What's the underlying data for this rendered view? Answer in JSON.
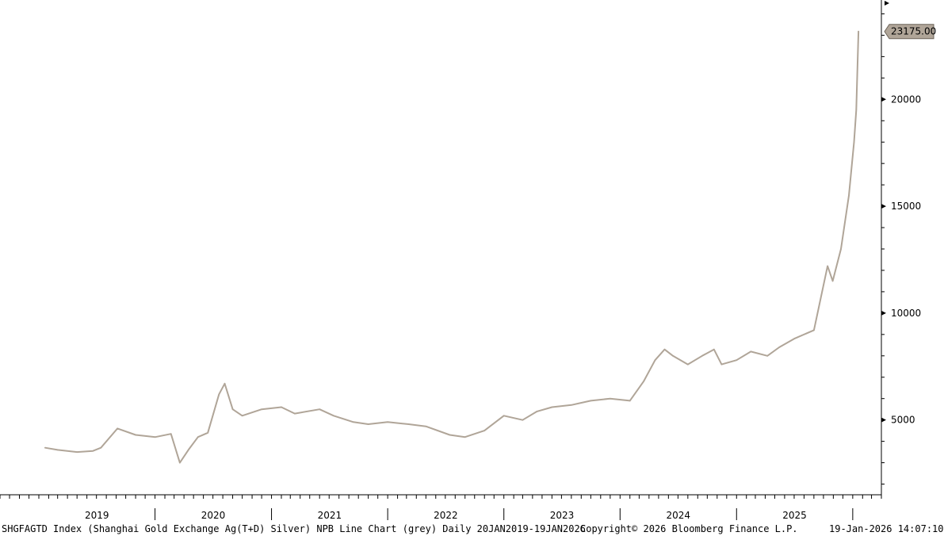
{
  "chart_data": {
    "type": "line",
    "ticker": "SHGFAGTD Index",
    "series": [
      {
        "name": "",
        "color": "#b0a598",
        "x": [
          "2019-01-21",
          "2019-03-01",
          "2019-05-01",
          "2019-06-20",
          "2019-07-15",
          "2019-09-05",
          "2019-11-01",
          "2020-01-02",
          "2020-02-20",
          "2020-03-19",
          "2020-04-15",
          "2020-05-15",
          "2020-06-15",
          "2020-07-20",
          "2020-08-07",
          "2020-09-01",
          "2020-10-01",
          "2020-12-01",
          "2021-02-01",
          "2021-03-15",
          "2021-06-01",
          "2021-07-15",
          "2021-09-15",
          "2021-11-01",
          "2022-01-01",
          "2022-03-08",
          "2022-05-01",
          "2022-07-15",
          "2022-09-01",
          "2022-11-01",
          "2023-01-01",
          "2023-03-01",
          "2023-04-15",
          "2023-06-01",
          "2023-08-01",
          "2023-10-01",
          "2023-12-01",
          "2024-02-01",
          "2024-03-15",
          "2024-04-20",
          "2024-05-20",
          "2024-06-15",
          "2024-08-01",
          "2024-09-15",
          "2024-10-22",
          "2024-11-15",
          "2025-01-01",
          "2025-02-15",
          "2025-04-08",
          "2025-05-15",
          "2025-07-01",
          "2025-09-01",
          "2025-10-14",
          "2025-10-30",
          "2025-11-25",
          "2025-12-20",
          "2026-01-05",
          "2026-01-12",
          "2026-01-19"
        ],
        "y": [
          3700,
          3600,
          3500,
          3550,
          3700,
          4600,
          4300,
          4200,
          4350,
          3000,
          3600,
          4200,
          4400,
          6200,
          6700,
          5500,
          5200,
          5500,
          5600,
          5300,
          5500,
          5200,
          4900,
          4800,
          4900,
          4800,
          4700,
          4300,
          4200,
          4500,
          5200,
          5000,
          5400,
          5600,
          5700,
          5900,
          6000,
          5900,
          6800,
          7800,
          8300,
          8000,
          7600,
          8000,
          8300,
          7600,
          7800,
          8200,
          8000,
          8400,
          8800,
          9200,
          12200,
          11500,
          13000,
          15500,
          18000,
          19500,
          23175
        ]
      }
    ],
    "ylim": [
      1500,
      24500
    ],
    "xlim": [
      "2018-09-01",
      "2026-04-01"
    ],
    "y_ticks": [
      5000,
      10000,
      15000,
      20000
    ],
    "y_tick_labels": [
      "5000",
      "10000",
      "15000",
      "20000"
    ],
    "x_year_labels": [
      "2019",
      "2020",
      "2021",
      "2022",
      "2023",
      "2024",
      "2025"
    ],
    "last_value_label": "23175.00",
    "grid": false,
    "legend": "none"
  },
  "footer": {
    "left": "SHGFAGTD Index (Shanghai Gold Exchange Ag(T+D) Silver) NPB Line Chart (grey) Daily 20JAN2019-19JAN2026",
    "center": "Copyright© 2026 Bloomberg Finance L.P.",
    "right": "19-Jan-2026 14:07:10"
  }
}
